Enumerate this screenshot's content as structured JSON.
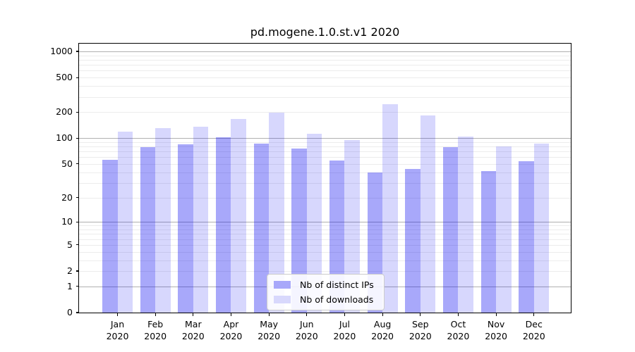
{
  "chart_data": {
    "type": "bar",
    "title": "pd.mogene.1.0.st.v1 2020",
    "months": [
      "Jan",
      "Feb",
      "Mar",
      "Apr",
      "May",
      "Jun",
      "Jul",
      "Aug",
      "Sep",
      "Oct",
      "Nov",
      "Dec"
    ],
    "year": "2020",
    "series": [
      {
        "name": "Nb of distinct IPs",
        "color_hex": "#a8a8fa",
        "color_fill": "rgba(0,0,240,0.34)",
        "values": [
          56,
          79,
          85,
          103,
          87,
          75,
          55,
          40,
          44,
          79,
          41,
          54
        ]
      },
      {
        "name": "Nb of downloads",
        "color_hex": "#d8d8fc",
        "color_fill": "rgba(0,0,240,0.155)",
        "values": [
          118,
          130,
          135,
          166,
          196,
          113,
          95,
          248,
          183,
          105,
          80,
          87
        ]
      }
    ],
    "yscale": "log1p",
    "ylim": [
      0,
      1000
    ],
    "yticks": [
      0,
      1,
      2,
      5,
      10,
      20,
      50,
      100,
      200,
      500,
      1000
    ],
    "grid": {
      "major_at": [
        1,
        10,
        100,
        1000
      ],
      "major_color": "#b0b0b0",
      "minor_color": "#ececec"
    },
    "legend": {
      "position": "lower-center"
    },
    "xlabel": "",
    "ylabel": ""
  }
}
